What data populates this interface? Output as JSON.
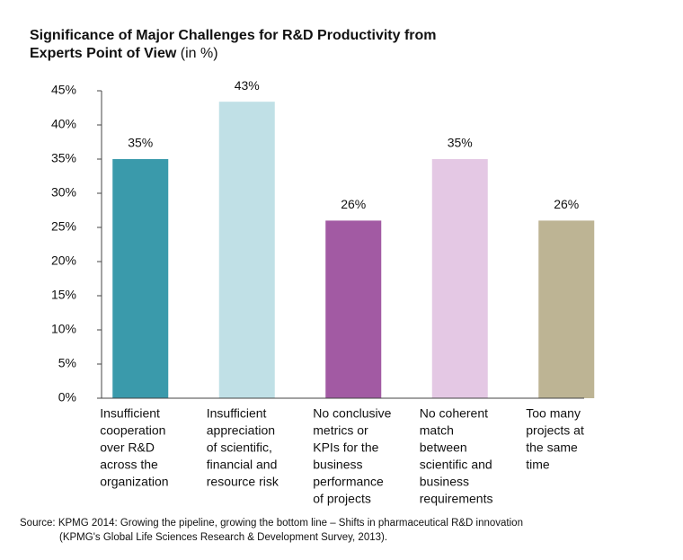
{
  "chart_data": {
    "type": "bar",
    "title": [
      "Significance of Major Challenges for R&D Productivity from",
      "Experts Point of View"
    ],
    "title_unit": "(in %)",
    "categories": [
      [
        "Insufficient",
        "cooperation",
        "over R&D",
        "across the",
        "organization"
      ],
      [
        "Insufficient",
        "appreciation",
        "of scientific,",
        "financial and",
        "resource risk"
      ],
      [
        "No conclusive",
        "metrics or",
        "KPIs for the",
        "business",
        "performance",
        "of projects"
      ],
      [
        "No coherent",
        "match",
        "between",
        "scientific and",
        "business",
        "requirements"
      ],
      [
        "Too many",
        "projects at",
        "the same",
        "time"
      ]
    ],
    "values": [
      35,
      43.4,
      26,
      35,
      26
    ],
    "value_labels": [
      "35%",
      "43%",
      "26%",
      "35%",
      "26%"
    ],
    "colors": [
      "#3a9aab",
      "#c0e0e6",
      "#a25aa3",
      "#e4c8e4",
      "#bdb494"
    ],
    "ylim": [
      0,
      45
    ],
    "yticks": [
      {
        "value": 0,
        "label": "0%"
      },
      {
        "value": 5,
        "label": "5%"
      },
      {
        "value": 10,
        "label": "10%"
      },
      {
        "value": 15,
        "label": "15%"
      },
      {
        "value": 20,
        "label": "20%"
      },
      {
        "value": 25,
        "label": "25%"
      },
      {
        "value": 30,
        "label": "30%"
      },
      {
        "value": 35,
        "label": "35%"
      },
      {
        "value": 40,
        "label": "40%"
      },
      {
        "value": 45,
        "label": "45%"
      }
    ],
    "source": [
      "Source:  KPMG 2014: Growing the pipeline, growing the bottom line – Shifts in pharmaceutical R&D innovation",
      "(KPMG's Global Life Sciences Research & Development Survey, 2013)."
    ]
  }
}
